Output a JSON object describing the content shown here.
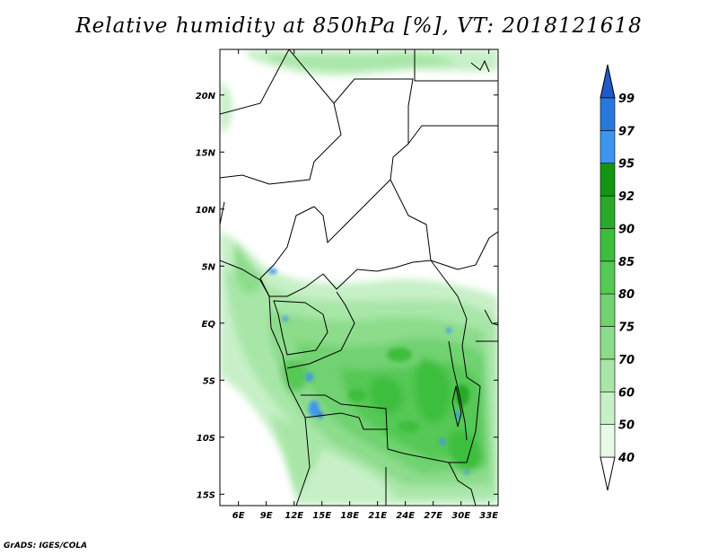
{
  "title": "Relative humidity at 850hPa [%], VT: 2018121618",
  "credit": "GrADS: IGES/COLA",
  "chart_data": {
    "type": "heatmap",
    "variable": "Relative humidity at 850hPa",
    "units": "%",
    "valid_time": "2018121618",
    "x_range_deg_east": [
      4,
      34
    ],
    "y_range_deg_north": [
      -16,
      24
    ],
    "lon_ticks": [
      6,
      9,
      12,
      15,
      18,
      21,
      24,
      27,
      30,
      33
    ],
    "lon_tick_labels": [
      "6E",
      "9E",
      "12E",
      "15E",
      "18E",
      "21E",
      "24E",
      "27E",
      "30E",
      "33E"
    ],
    "lat_ticks": [
      20,
      15,
      10,
      5,
      0,
      -5,
      -10,
      -15
    ],
    "lat_tick_labels": [
      "20N",
      "15N",
      "10N",
      "5N",
      "EQ",
      "5S",
      "10S",
      "15S"
    ],
    "colorbar": {
      "levels": [
        40,
        50,
        60,
        70,
        75,
        80,
        85,
        90,
        92,
        95,
        97,
        99
      ],
      "labels": [
        "40",
        "50",
        "60",
        "70",
        "75",
        "80",
        "85",
        "90",
        "92",
        "95",
        "97",
        "99"
      ],
      "colors": [
        "#e6fae6",
        "#c8f0c8",
        "#a8e6a8",
        "#8cdc8c",
        "#70d270",
        "#55c855",
        "#3cbe3c",
        "#28aa28",
        "#149614",
        "#3c96f0",
        "#2878dc",
        "#1e5ac8"
      ],
      "extend": "both"
    }
  }
}
